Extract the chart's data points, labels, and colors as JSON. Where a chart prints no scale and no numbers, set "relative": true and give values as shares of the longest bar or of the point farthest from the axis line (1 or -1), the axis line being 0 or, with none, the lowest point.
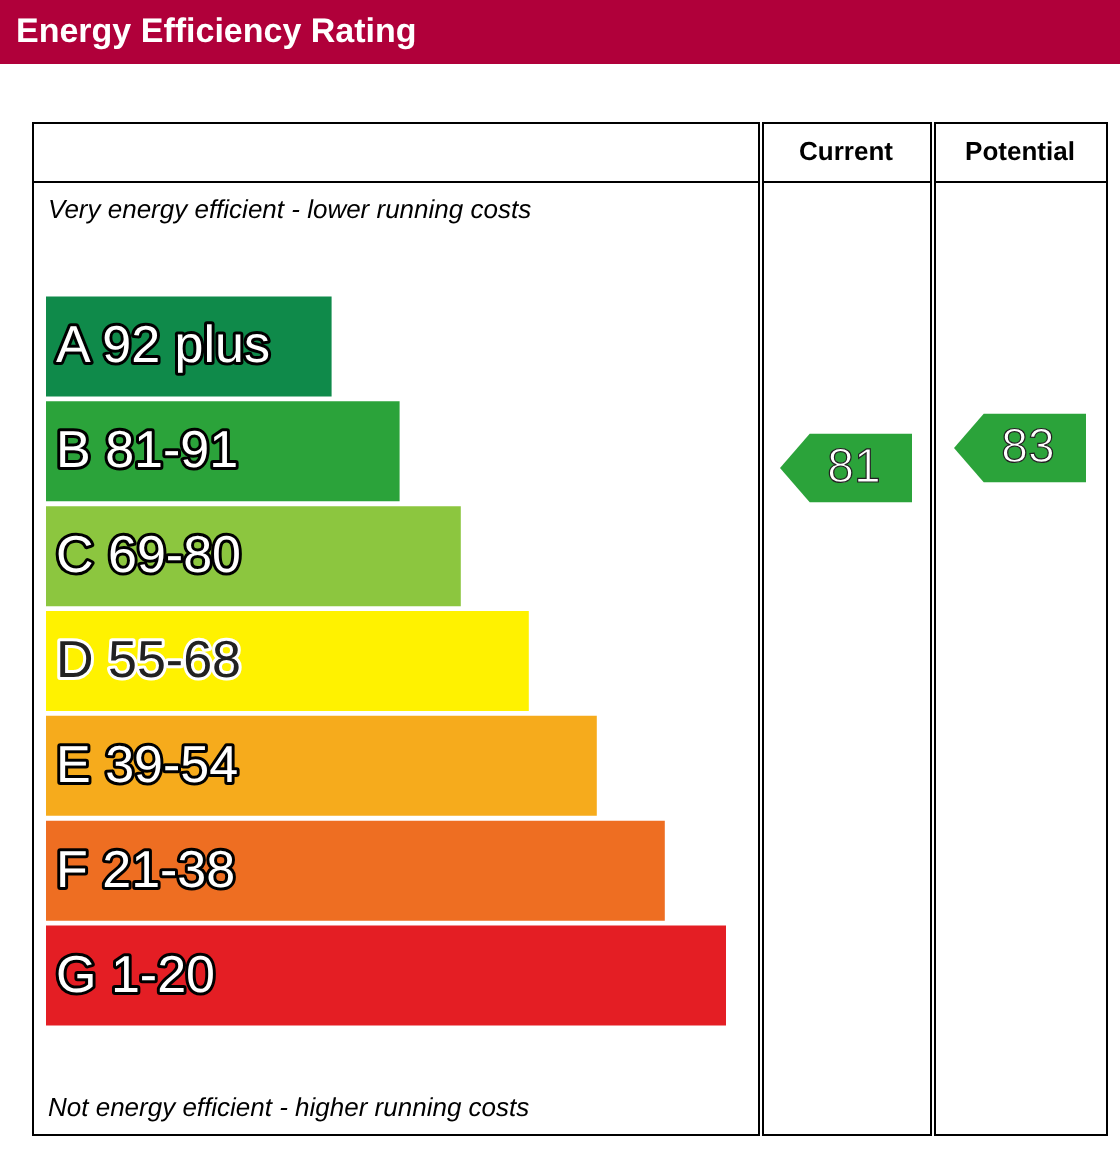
{
  "chart_data": {
    "type": "bar",
    "orientation": "horizontal",
    "relative": true,
    "title": "Energy Efficiency Rating",
    "categories": [
      "A 92 plus",
      "B 81-91",
      "C 69-80",
      "D 55-68",
      "E 39-54",
      "F 21-38",
      "G 1-20"
    ],
    "values": [
      0.42,
      0.52,
      0.61,
      0.71,
      0.81,
      0.91,
      1
    ],
    "colors": [
      "#0f8a4a",
      "#2ba33a",
      "#8cc63f",
      "#fff200",
      "#f6ab1c",
      "#ee6e22",
      "#e41e24"
    ],
    "annotations": [
      "Very energy efficient - lower running costs",
      "Current",
      "Potential",
      "81",
      "83",
      "Not energy efficient - higher running costs"
    ]
  }
}
